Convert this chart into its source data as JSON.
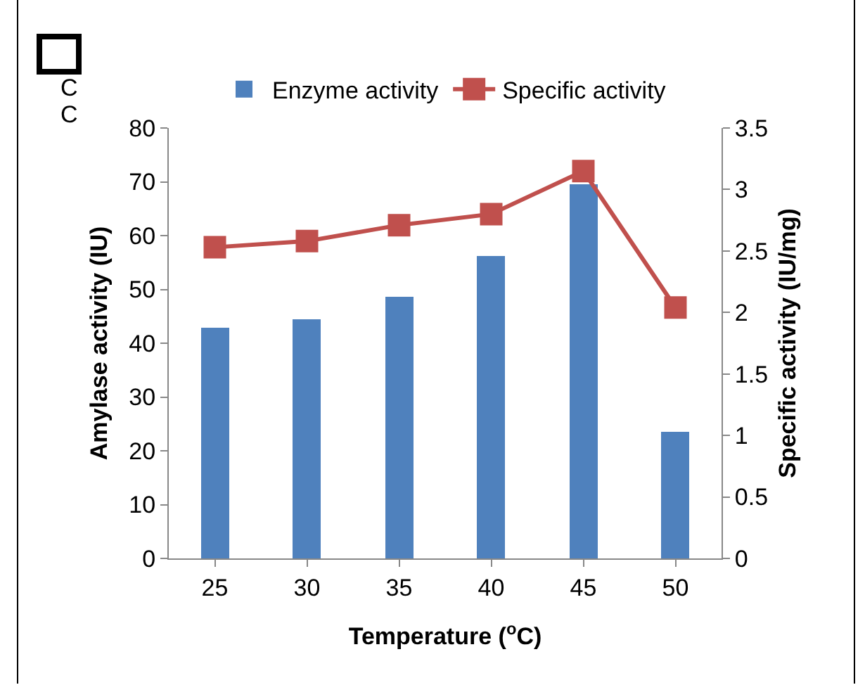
{
  "chart_data": {
    "type": "bar",
    "categories": [
      "25",
      "30",
      "35",
      "40",
      "45",
      "50"
    ],
    "series": [
      {
        "name": "Enzyme activity",
        "color": "#4f81bd",
        "values": [
          43.0,
          44.5,
          48.5,
          56.3,
          69.5,
          23.5
        ]
      },
      {
        "name": "Specific activity",
        "type": "line",
        "axis": "y2",
        "color": "#c0504d",
        "values": [
          2.53,
          2.58,
          2.71,
          2.8,
          3.15,
          2.04
        ]
      }
    ],
    "xlabel": "Temperature ($^{o}$C)",
    "ylabel": "Amylase activity (IU)",
    "y2label": "Specific activity (IU/mg)",
    "ylim": [
      0,
      80
    ],
    "yticks": [
      0,
      10,
      20,
      30,
      40,
      50,
      60,
      70,
      80
    ],
    "y2lim": [
      0,
      3.5
    ],
    "y2ticks": [
      0,
      0.5,
      1,
      1.5,
      2,
      2.5,
      3,
      3.5
    ],
    "marker": "square",
    "line_style": "solid",
    "grid": false,
    "legend": "top",
    "annotations": [
      "C",
      "C"
    ]
  }
}
